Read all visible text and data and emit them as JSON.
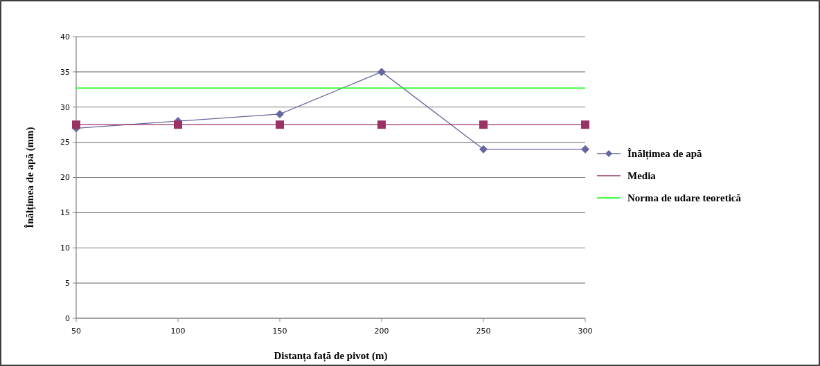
{
  "chart_data": {
    "type": "line",
    "xlabel": "Distanța față de pivot (m)",
    "ylabel": "Înălțimea de apă (mm)",
    "x": [
      50,
      100,
      150,
      200,
      250,
      300
    ],
    "series": [
      {
        "name": "Înălțimea de apă",
        "color": "#6666a0",
        "values": [
          27,
          28,
          29,
          35,
          24,
          24
        ],
        "marker": "diamond"
      },
      {
        "name": "Media",
        "color": "#993366",
        "values": [
          27.5,
          27.5,
          27.5,
          27.5,
          27.5,
          27.5
        ],
        "marker": "square"
      },
      {
        "name": "Norma de udare teoretică",
        "color": "#00ff00",
        "values": [
          32.7,
          32.7,
          32.7,
          32.7,
          32.7,
          32.7
        ],
        "marker": "none"
      }
    ],
    "xlim": [
      50,
      300
    ],
    "xticks": [
      50,
      100,
      150,
      200,
      250,
      300
    ],
    "ylim": [
      0,
      40
    ],
    "yticks": [
      0,
      5,
      10,
      15,
      20,
      25,
      30,
      35,
      40
    ],
    "grid": "y",
    "legend": "right",
    "line_style": "solid"
  }
}
